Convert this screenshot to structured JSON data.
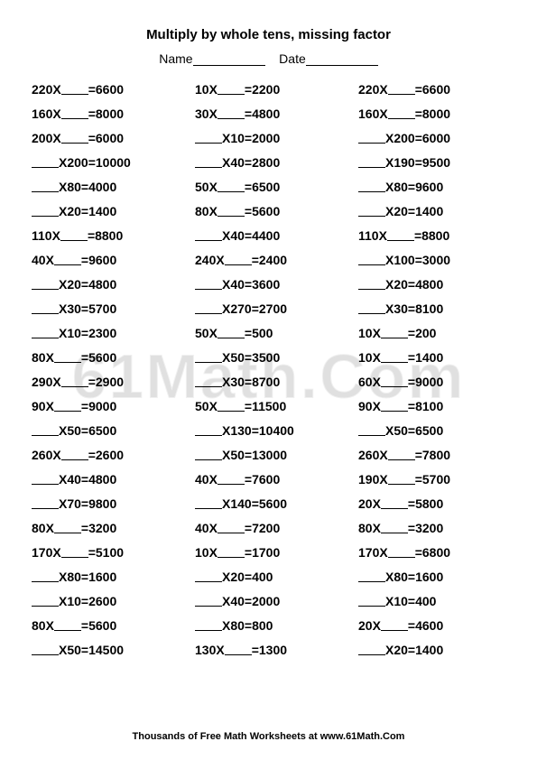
{
  "title": "Multiply by whole tens, missing factor",
  "name_label": "Name",
  "date_label": "Date",
  "watermark": "61Math.Com",
  "footer": "Thousands of Free Math Worksheets at www.61Math.Com",
  "columns": [
    [
      {
        "before": "220X",
        "after": "=6600"
      },
      {
        "before": "160X",
        "after": "=8000"
      },
      {
        "before": "200X",
        "after": "=6000"
      },
      {
        "before": "",
        "after": "X200=10000"
      },
      {
        "before": "",
        "after": "X80=4000"
      },
      {
        "before": "",
        "after": "X20=1400"
      },
      {
        "before": "110X",
        "after": "=8800"
      },
      {
        "before": "40X",
        "after": "=9600"
      },
      {
        "before": "",
        "after": "X20=4800"
      },
      {
        "before": "",
        "after": "X30=5700"
      },
      {
        "before": "",
        "after": "X10=2300"
      },
      {
        "before": "80X",
        "after": "=5600"
      },
      {
        "before": "290X",
        "after": "=2900"
      },
      {
        "before": "90X",
        "after": "=9000"
      },
      {
        "before": "",
        "after": "X50=6500"
      },
      {
        "before": "260X",
        "after": "=2600"
      },
      {
        "before": "",
        "after": "X40=4800"
      },
      {
        "before": "",
        "after": "X70=9800"
      },
      {
        "before": "80X",
        "after": "=3200"
      },
      {
        "before": "170X",
        "after": "=5100"
      },
      {
        "before": "",
        "after": "X80=1600"
      },
      {
        "before": "",
        "after": "X10=2600"
      },
      {
        "before": "80X",
        "after": "=5600"
      },
      {
        "before": "",
        "after": "X50=14500"
      }
    ],
    [
      {
        "before": "10X",
        "after": "=2200"
      },
      {
        "before": "30X",
        "after": "=4800"
      },
      {
        "before": "",
        "after": "X10=2000"
      },
      {
        "before": "",
        "after": "X40=2800"
      },
      {
        "before": "50X",
        "after": "=6500"
      },
      {
        "before": "80X",
        "after": "=5600"
      },
      {
        "before": "",
        "after": "X40=4400"
      },
      {
        "before": "240X",
        "after": "=2400"
      },
      {
        "before": "",
        "after": "X40=3600"
      },
      {
        "before": "",
        "after": "X270=2700"
      },
      {
        "before": "50X",
        "after": "=500"
      },
      {
        "before": "",
        "after": "X50=3500"
      },
      {
        "before": "",
        "after": "X30=8700"
      },
      {
        "before": "50X",
        "after": "=11500"
      },
      {
        "before": "",
        "after": "X130=10400"
      },
      {
        "before": "",
        "after": "X50=13000"
      },
      {
        "before": "40X",
        "after": "=7600"
      },
      {
        "before": "",
        "after": "X140=5600"
      },
      {
        "before": "40X",
        "after": "=7200"
      },
      {
        "before": "10X",
        "after": "=1700"
      },
      {
        "before": "",
        "after": "X20=400"
      },
      {
        "before": "",
        "after": "X40=2000"
      },
      {
        "before": "",
        "after": "X80=800"
      },
      {
        "before": "130X",
        "after": "=1300"
      }
    ],
    [
      {
        "before": "220X",
        "after": "=6600"
      },
      {
        "before": "160X",
        "after": "=8000"
      },
      {
        "before": "",
        "after": "X200=6000"
      },
      {
        "before": "",
        "after": "X190=9500"
      },
      {
        "before": "",
        "after": "X80=9600"
      },
      {
        "before": "",
        "after": "X20=1400"
      },
      {
        "before": "110X",
        "after": "=8800"
      },
      {
        "before": "",
        "after": "X100=3000"
      },
      {
        "before": "",
        "after": "X20=4800"
      },
      {
        "before": "",
        "after": "X30=8100"
      },
      {
        "before": "10X",
        "after": "=200"
      },
      {
        "before": "10X",
        "after": "=1400"
      },
      {
        "before": "60X",
        "after": "=9000"
      },
      {
        "before": "90X",
        "after": "=8100"
      },
      {
        "before": "",
        "after": "X50=6500"
      },
      {
        "before": "260X",
        "after": "=7800"
      },
      {
        "before": "190X",
        "after": "=5700"
      },
      {
        "before": "20X",
        "after": "=5800"
      },
      {
        "before": "80X",
        "after": "=3200"
      },
      {
        "before": "170X",
        "after": "=6800"
      },
      {
        "before": "",
        "after": "X80=1600"
      },
      {
        "before": "",
        "after": "X10=400"
      },
      {
        "before": "20X",
        "after": "=4600"
      },
      {
        "before": "",
        "after": "X20=1400"
      }
    ]
  ]
}
